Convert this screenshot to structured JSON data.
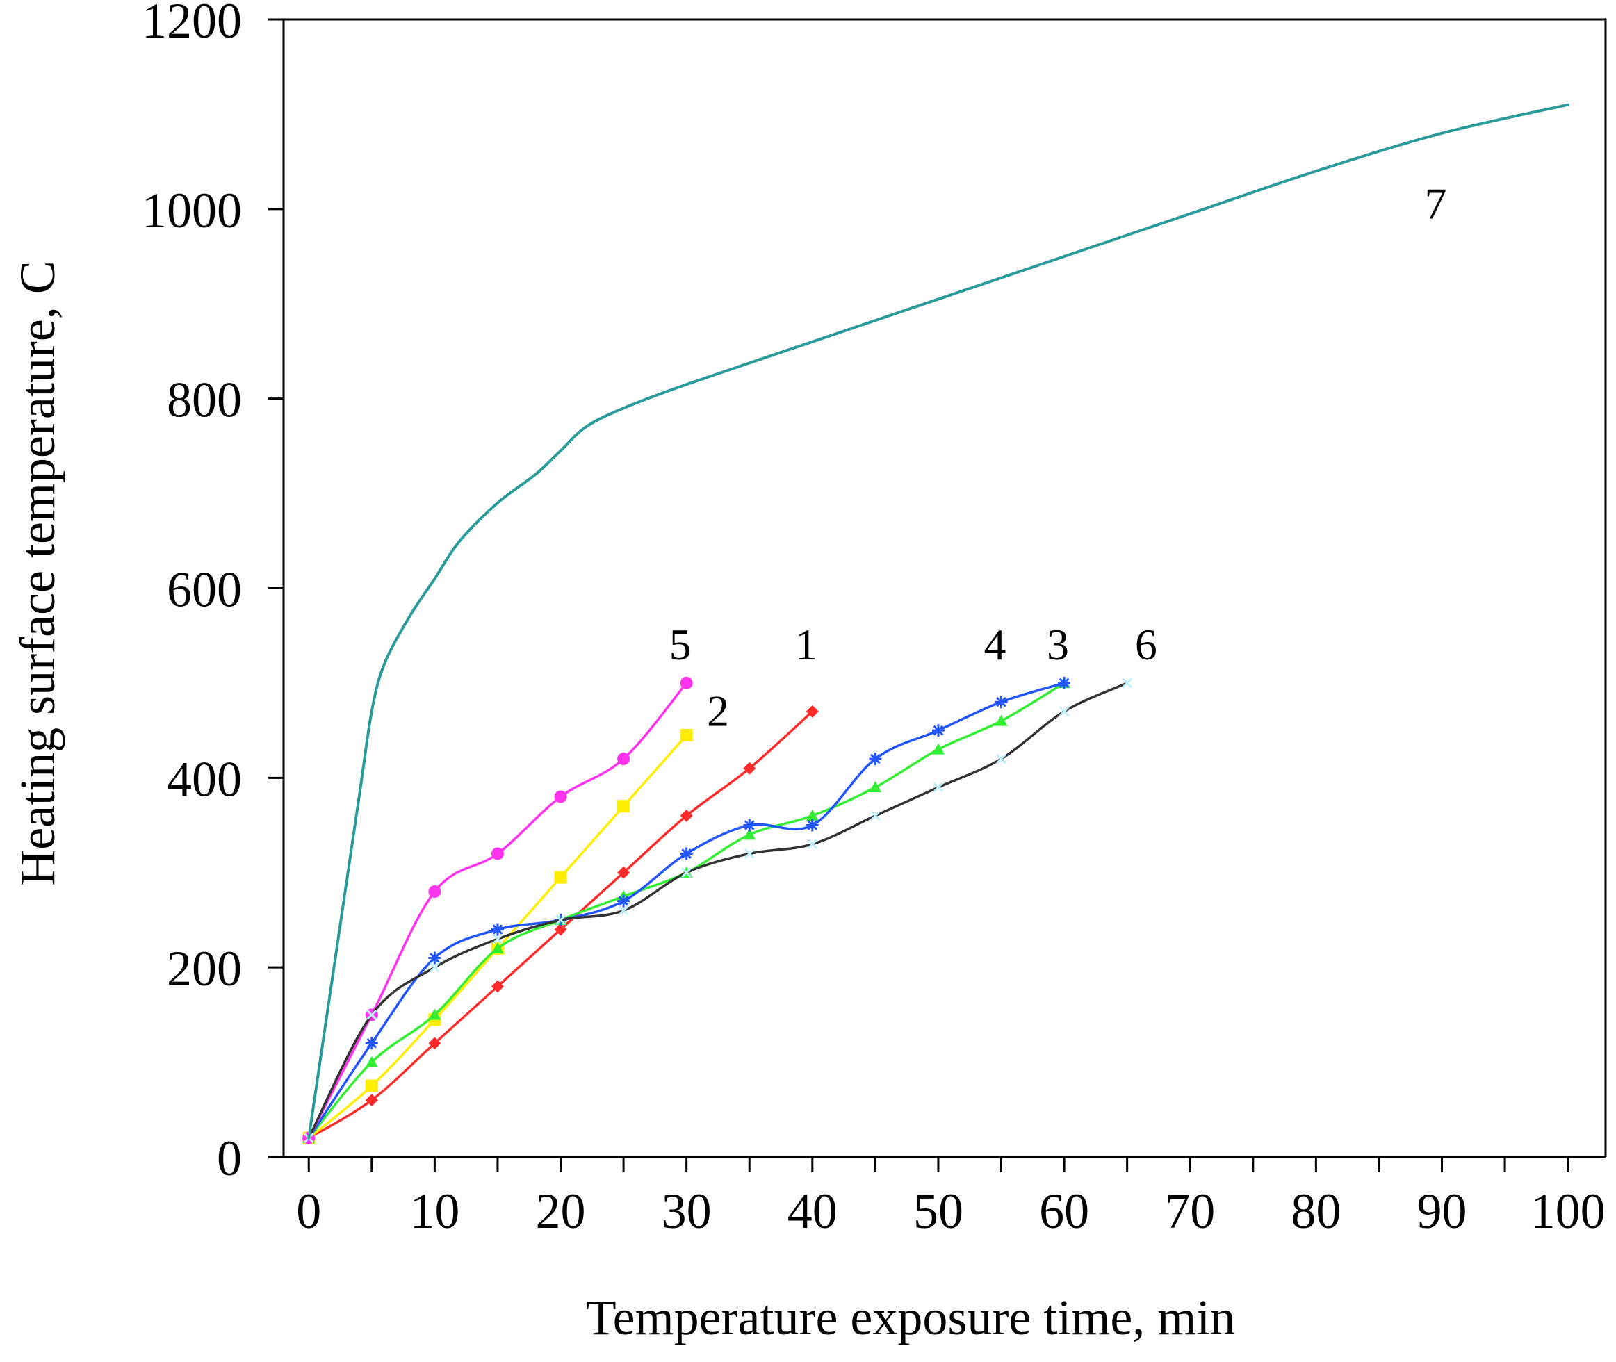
{
  "chart_data": {
    "type": "line",
    "title": "",
    "xlabel": "Temperature exposure time, min",
    "ylabel": "Heating surface temperature, C",
    "xlim": [
      -2,
      103
    ],
    "ylim": [
      0,
      1200
    ],
    "grid": false,
    "x_ticks": [
      0,
      10,
      20,
      30,
      40,
      50,
      60,
      70,
      80,
      90,
      100
    ],
    "x_tick_labels": [
      "0",
      "10",
      "20",
      "30",
      "40",
      "50",
      "60",
      "70",
      "80",
      "90",
      "100"
    ],
    "y_ticks": [
      0,
      200,
      400,
      600,
      800,
      1000,
      1200
    ],
    "y_tick_labels": [
      "0",
      "200",
      "400",
      "600",
      "800",
      "1000",
      "1200"
    ],
    "series": [
      {
        "name": "1",
        "color": "#ff2a2a",
        "marker": "diamond",
        "x": [
          0,
          5,
          10,
          15,
          20,
          25,
          30,
          35,
          40
        ],
        "y": [
          20,
          60,
          120,
          180,
          240,
          300,
          360,
          410,
          470
        ]
      },
      {
        "name": "2",
        "color": "#ffee00",
        "marker": "square",
        "x": [
          0,
          5,
          10,
          15,
          20,
          25,
          30
        ],
        "y": [
          20,
          75,
          145,
          220,
          295,
          370,
          445
        ]
      },
      {
        "name": "3",
        "color": "#33ee33",
        "marker": "triangle",
        "x": [
          0,
          5,
          10,
          15,
          20,
          25,
          30,
          35,
          40,
          45,
          50,
          55,
          60
        ],
        "y": [
          20,
          100,
          150,
          220,
          250,
          275,
          300,
          340,
          360,
          390,
          430,
          460,
          500
        ]
      },
      {
        "name": "4",
        "color": "#2255ff",
        "marker": "star",
        "x": [
          0,
          5,
          10,
          15,
          20,
          25,
          30,
          35,
          40,
          45,
          50,
          55,
          60
        ],
        "y": [
          20,
          120,
          210,
          240,
          250,
          270,
          320,
          350,
          350,
          420,
          450,
          480,
          500
        ]
      },
      {
        "name": "5",
        "color": "#ff33ee",
        "marker": "circle",
        "x": [
          0,
          5,
          10,
          15,
          20,
          25,
          30
        ],
        "y": [
          20,
          150,
          280,
          320,
          380,
          420,
          500
        ]
      },
      {
        "name": "6",
        "color": "#333333",
        "marker": "x",
        "x": [
          0,
          5,
          10,
          15,
          20,
          25,
          30,
          35,
          40,
          45,
          50,
          55,
          60,
          65
        ],
        "y": [
          20,
          150,
          200,
          230,
          250,
          260,
          300,
          320,
          330,
          360,
          390,
          420,
          470,
          500
        ]
      },
      {
        "name": "7",
        "color": "#2a9a9a",
        "marker": "none",
        "x": [
          0,
          2,
          4,
          5,
          6,
          8,
          10,
          12,
          15,
          18,
          20,
          22,
          25,
          30,
          40,
          50,
          60,
          70,
          80,
          90,
          100
        ],
        "y": [
          20,
          200,
          380,
          470,
          520,
          570,
          610,
          650,
          690,
          720,
          745,
          770,
          790,
          815,
          860,
          905,
          950,
          995,
          1040,
          1080,
          1110
        ]
      }
    ],
    "annotations": [
      {
        "text": "5",
        "x": 29.5,
        "y": 525
      },
      {
        "text": "2",
        "x": 32.5,
        "y": 455
      },
      {
        "text": "1",
        "x": 39.5,
        "y": 525
      },
      {
        "text": "4",
        "x": 54.5,
        "y": 525
      },
      {
        "text": "3",
        "x": 59.5,
        "y": 525
      },
      {
        "text": "6",
        "x": 66.5,
        "y": 525
      },
      {
        "text": "7",
        "x": 89.5,
        "y": 990
      }
    ]
  }
}
